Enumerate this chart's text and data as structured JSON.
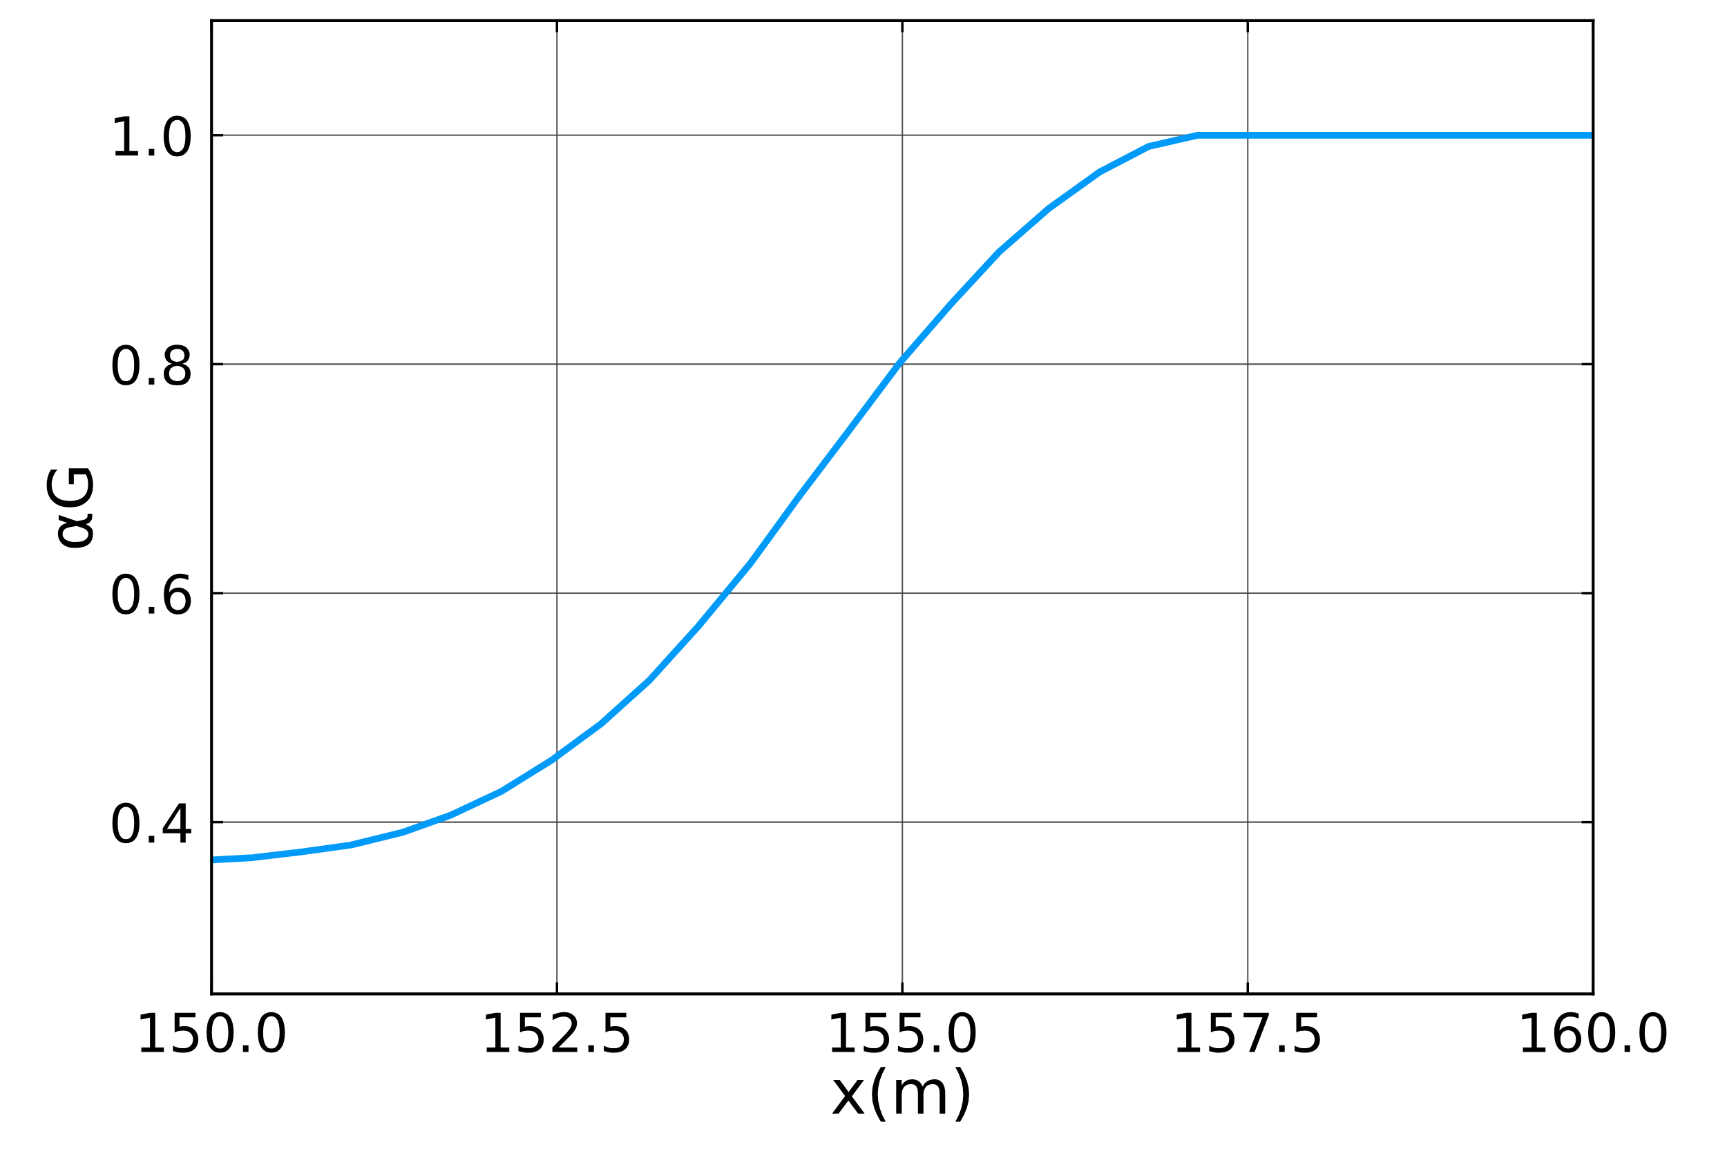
{
  "chart_data": {
    "type": "line",
    "xlabel": "x(m)",
    "ylabel": "αG",
    "x": [
      150.0,
      150.3,
      150.65,
      151.01,
      151.38,
      151.73,
      152.1,
      152.46,
      152.82,
      153.17,
      153.53,
      153.9,
      154.25,
      154.62,
      154.98,
      155.34,
      155.7,
      156.06,
      156.43,
      156.78,
      157.14,
      160.0
    ],
    "series": [
      {
        "color": "#009af9",
        "values": [
          0.367,
          0.369,
          0.374,
          0.38,
          0.391,
          0.406,
          0.427,
          0.454,
          0.486,
          0.524,
          0.572,
          0.626,
          0.684,
          0.743,
          0.801,
          0.851,
          0.898,
          0.936,
          0.968,
          0.99,
          1.0,
          1.0
        ]
      }
    ],
    "xlim": [
      150,
      160
    ],
    "ylim": [
      0.25,
      1.1
    ],
    "xticks": [
      {
        "value": 150,
        "label": "150.0"
      },
      {
        "value": 152.5,
        "label": "152.5"
      },
      {
        "value": 155,
        "label": "155.0"
      },
      {
        "value": 157.5,
        "label": "157.5"
      },
      {
        "value": 160,
        "label": "160.0"
      }
    ],
    "yticks": [
      {
        "value": 0.4,
        "label": "0.4"
      },
      {
        "value": 0.6,
        "label": "0.6"
      },
      {
        "value": 0.8,
        "label": "0.8"
      },
      {
        "value": 1.0,
        "label": "1.0"
      }
    ],
    "grid": true,
    "legend": false,
    "line_style": "solid"
  }
}
